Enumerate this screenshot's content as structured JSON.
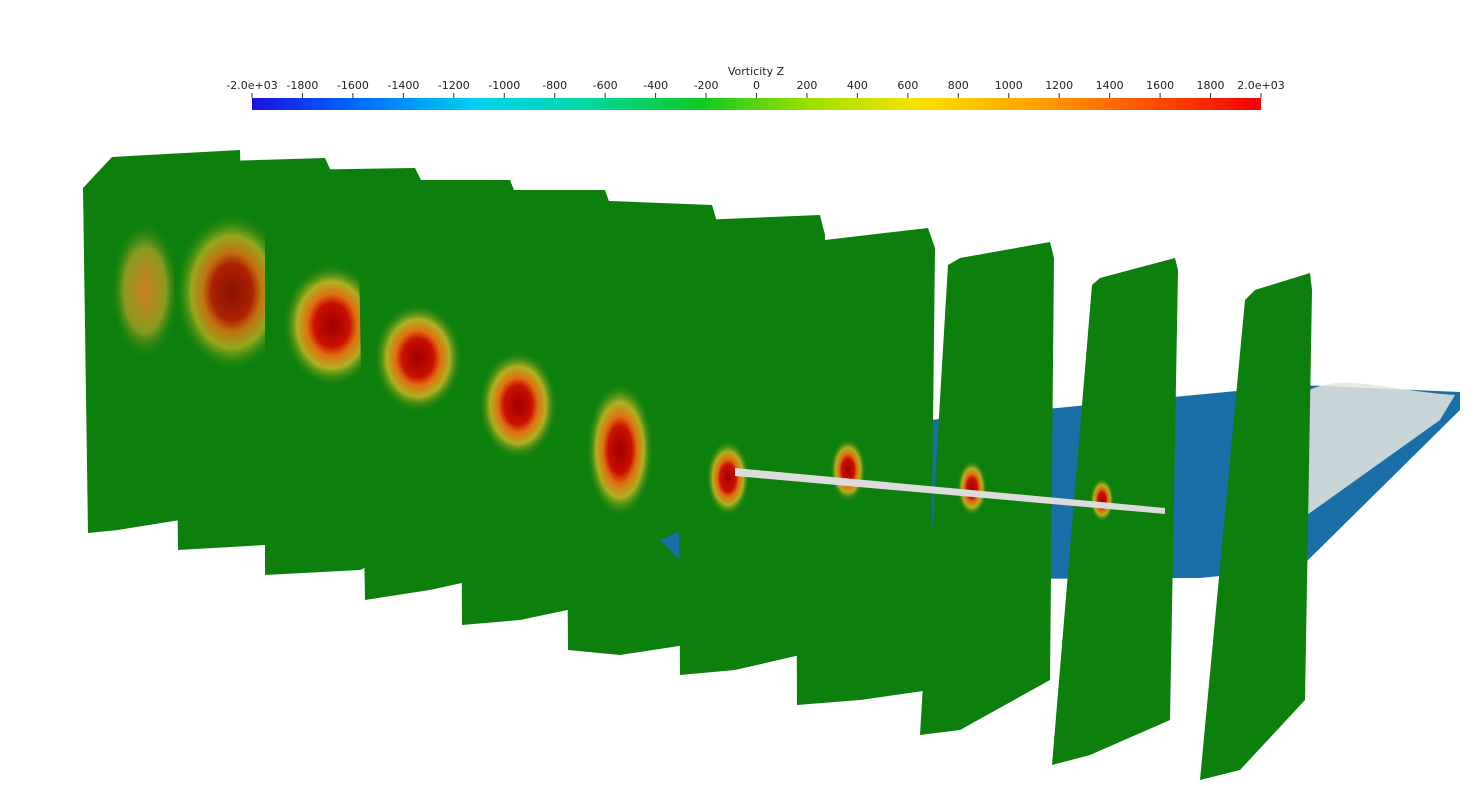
{
  "colorbar": {
    "title": "Vorticity Z",
    "range": [
      -2000,
      2000
    ],
    "ticks": [
      {
        "value": -2000,
        "label": "-2.0e+03"
      },
      -1800,
      -1600,
      -1400,
      -1200,
      -1000,
      -800,
      -600,
      -400,
      -200,
      0,
      200,
      400,
      600,
      800,
      1000,
      1200,
      1400,
      1600,
      1800,
      {
        "value": 2000,
        "label": "2.0e+03"
      }
    ],
    "colors": [
      "#1a10e0",
      "#0070ff",
      "#00d0f0",
      "#00d8a0",
      "#10c820",
      "#a0e000",
      "#ffe000",
      "#ffa000",
      "#ff5000",
      "#f00000"
    ]
  }
}
